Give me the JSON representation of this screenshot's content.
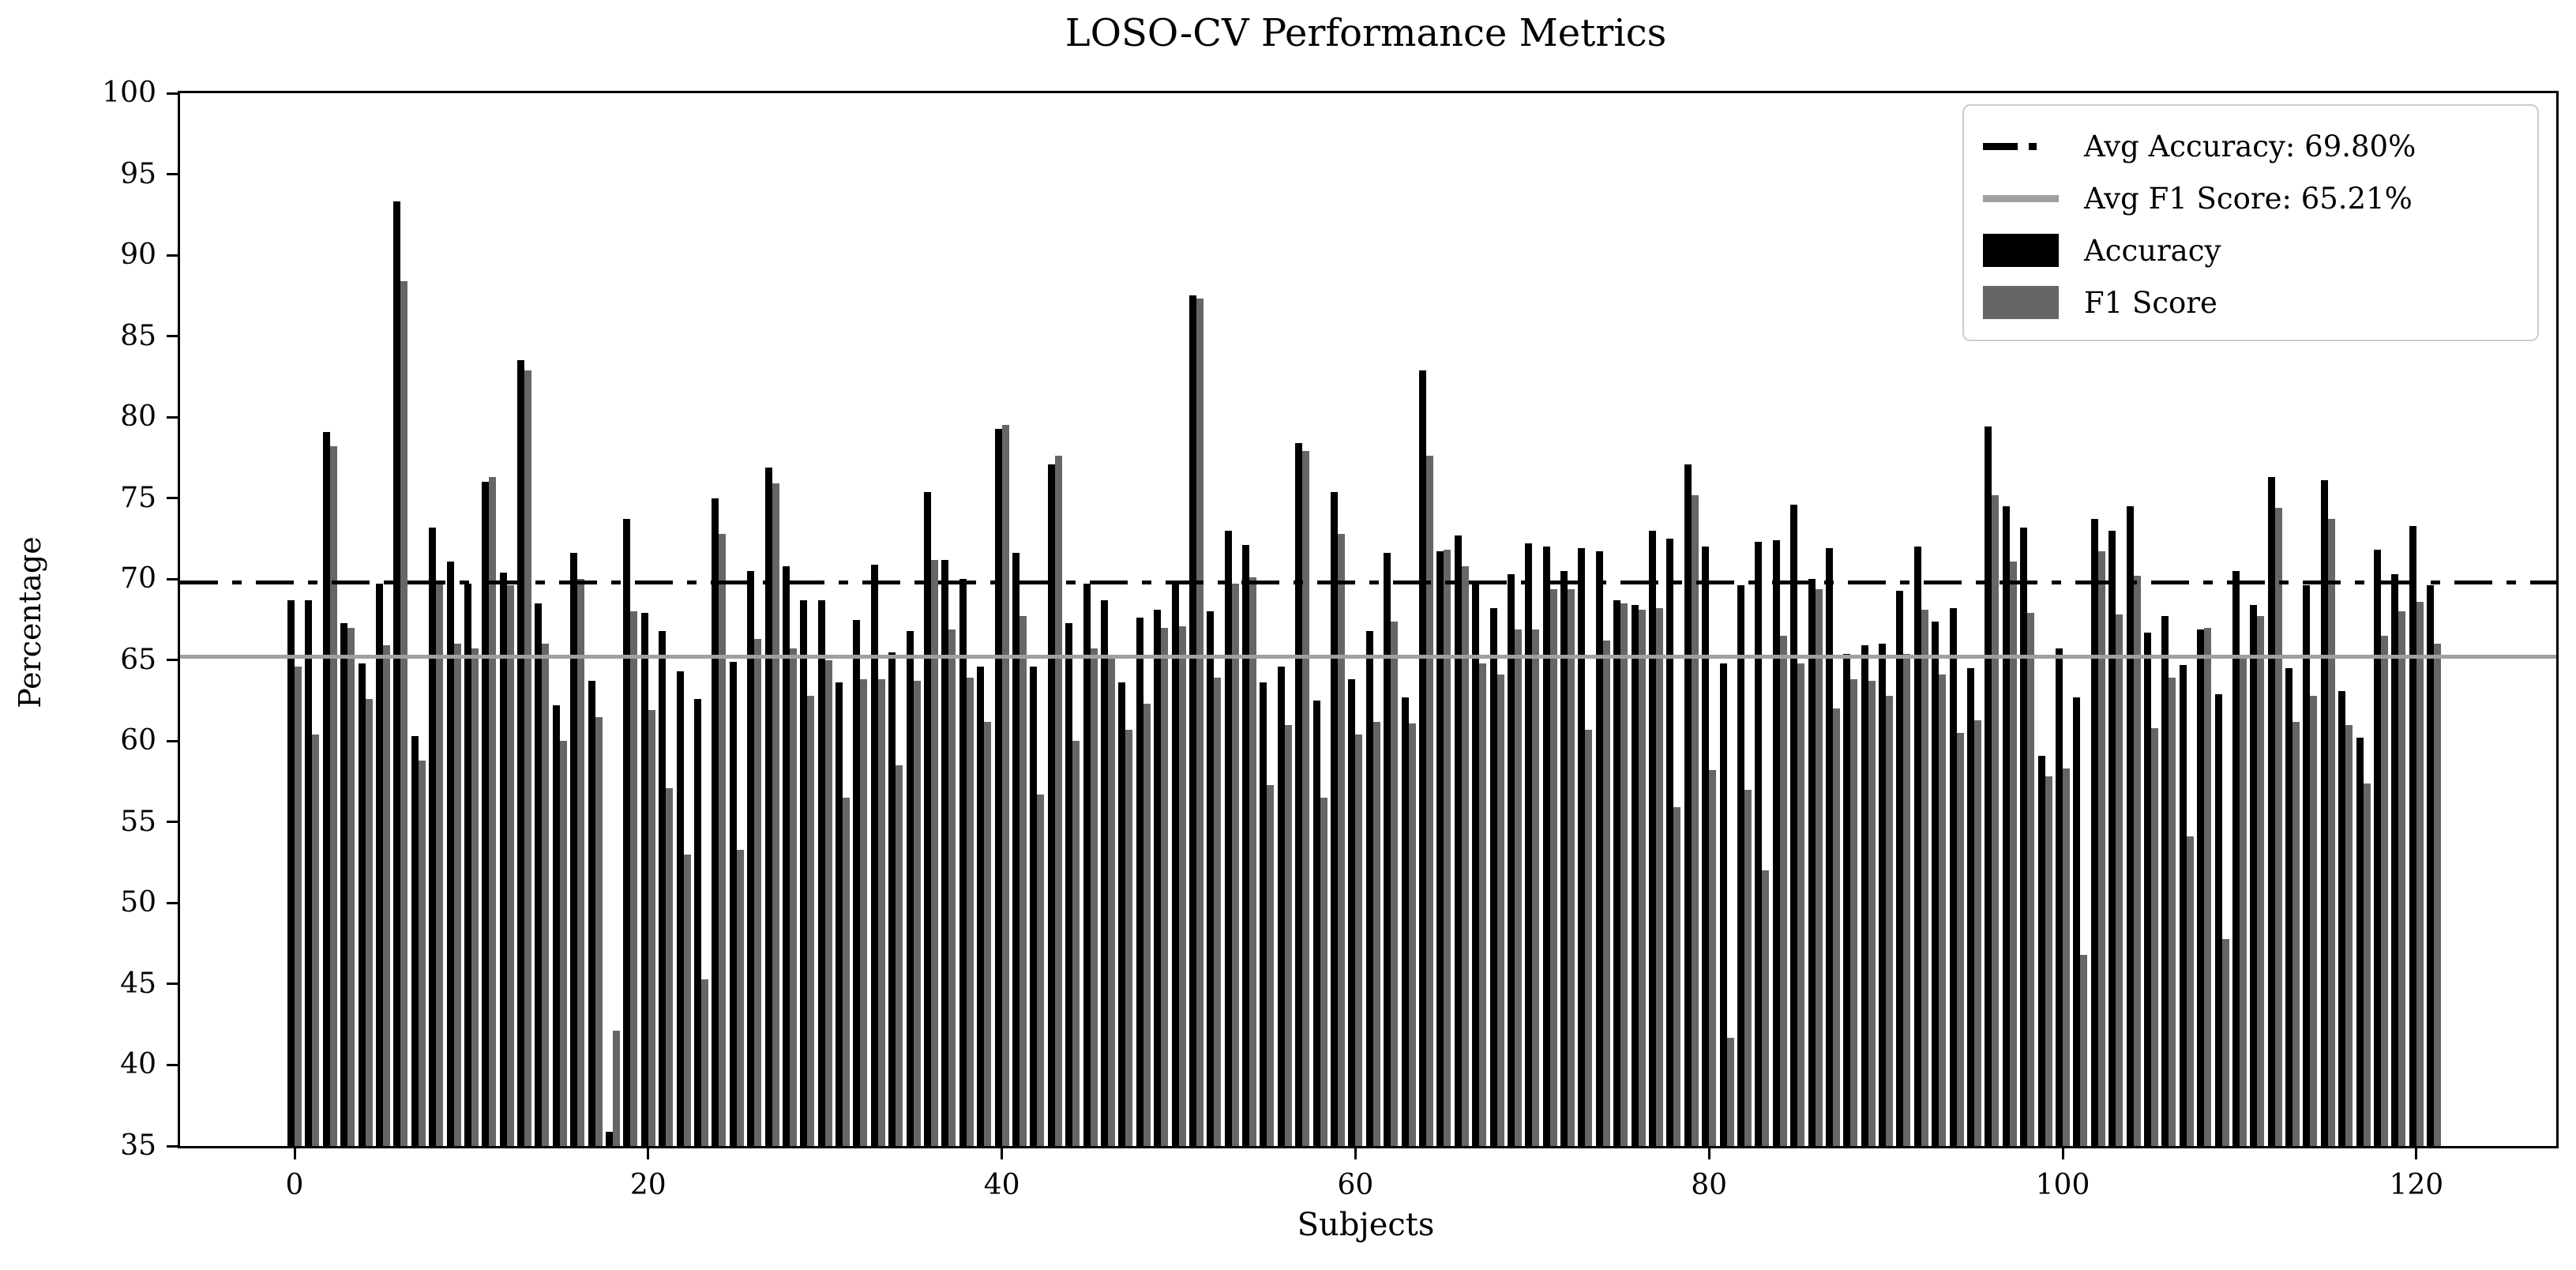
{
  "title": "LOSO-CV Performance Metrics",
  "axes": {
    "xlabel": "Subjects",
    "ylabel": "Percentage"
  },
  "legend": {
    "items": [
      {
        "label": "Avg Accuracy: 69.80%",
        "swatch": "dashdot-line",
        "color": "#000000"
      },
      {
        "label": "Avg F1 Score: 65.21%",
        "swatch": "solid-line",
        "color": "#a0a0a0"
      },
      {
        "label": "Accuracy",
        "swatch": "patch",
        "color": "#000000"
      },
      {
        "label": "F1 Score",
        "swatch": "patch",
        "color": "#666666"
      }
    ]
  },
  "chart_data": {
    "type": "bar",
    "title": "LOSO-CV Performance Metrics",
    "xlabel": "Subjects",
    "ylabel": "Percentage",
    "ylim": [
      35,
      100
    ],
    "yticks": [
      35,
      40,
      45,
      50,
      55,
      60,
      65,
      70,
      75,
      80,
      85,
      90,
      95,
      100
    ],
    "xticks": [
      0,
      20,
      40,
      60,
      80,
      100,
      120
    ],
    "grid": false,
    "legend_position": "upper right",
    "n_subjects": 122,
    "avg_lines": [
      {
        "name": "Avg Accuracy",
        "value": 69.8,
        "style": "dashdot",
        "color": "#000000"
      },
      {
        "name": "Avg F1 Score",
        "value": 65.21,
        "style": "solid",
        "color": "#a0a0a0"
      }
    ],
    "series": [
      {
        "name": "Accuracy",
        "color": "#000000",
        "values": [
          68.7,
          68.7,
          79.1,
          67.3,
          64.8,
          69.7,
          93.3,
          60.3,
          73.2,
          71.1,
          69.7,
          76.0,
          70.4,
          83.5,
          68.5,
          62.2,
          71.6,
          63.7,
          35.9,
          73.7,
          67.9,
          66.8,
          64.3,
          62.6,
          75.0,
          64.9,
          70.5,
          76.9,
          70.8,
          68.7,
          68.7,
          63.6,
          67.5,
          70.9,
          65.5,
          66.8,
          75.4,
          71.2,
          70.0,
          64.6,
          79.3,
          71.6,
          64.6,
          77.1,
          67.3,
          69.7,
          68.7,
          63.6,
          67.6,
          68.1,
          69.7,
          87.5,
          68.0,
          73.0,
          72.1,
          63.6,
          64.6,
          78.4,
          62.5,
          75.4,
          63.8,
          66.8,
          71.6,
          62.7,
          82.9,
          71.7,
          72.7,
          69.7,
          68.2,
          70.3,
          72.2,
          72.0,
          70.5,
          71.9,
          71.7,
          68.7,
          68.4,
          73.0,
          72.5,
          77.1,
          72.0,
          64.8,
          69.6,
          72.3,
          72.4,
          74.6,
          70.0,
          71.9,
          65.4,
          65.9,
          66.0,
          69.3,
          72.0,
          67.4,
          68.2,
          64.5,
          79.4,
          74.5,
          73.2,
          59.1,
          65.7,
          62.7,
          73.7,
          73.0,
          74.5,
          66.7,
          67.7,
          64.7,
          66.9,
          62.9,
          70.5,
          68.4,
          76.3,
          64.5,
          69.6,
          76.1,
          63.1,
          60.2,
          71.8,
          70.3,
          73.3,
          69.6
        ]
      },
      {
        "name": "F1 Score",
        "color": "#666666",
        "values": [
          64.6,
          60.4,
          78.2,
          67.0,
          62.6,
          65.9,
          88.4,
          58.8,
          69.7,
          66.0,
          65.7,
          76.3,
          69.6,
          82.9,
          66.0,
          60.0,
          70.0,
          61.5,
          42.1,
          68.0,
          61.9,
          57.1,
          53.0,
          45.3,
          72.8,
          53.3,
          66.3,
          75.9,
          65.7,
          62.8,
          65.0,
          56.5,
          63.8,
          63.8,
          58.5,
          63.7,
          71.2,
          66.9,
          63.9,
          61.2,
          79.5,
          67.7,
          56.7,
          77.6,
          60.0,
          65.7,
          65.2,
          60.7,
          62.3,
          67.0,
          67.1,
          87.3,
          63.9,
          69.7,
          70.1,
          57.3,
          61.0,
          77.9,
          56.5,
          72.8,
          60.4,
          61.2,
          67.4,
          61.1,
          77.6,
          71.8,
          70.8,
          64.8,
          64.1,
          66.9,
          66.9,
          69.4,
          69.4,
          60.7,
          66.2,
          68.5,
          68.1,
          68.2,
          55.9,
          75.2,
          58.2,
          41.7,
          57.0,
          52.0,
          66.5,
          64.8,
          69.4,
          62.0,
          63.8,
          63.7,
          62.8,
          65.4,
          68.1,
          64.1,
          60.5,
          61.3,
          75.2,
          71.1,
          67.9,
          57.8,
          58.3,
          46.8,
          71.7,
          67.8,
          70.2,
          60.8,
          63.9,
          54.1,
          67.0,
          47.8,
          65.3,
          67.7,
          74.4,
          61.2,
          62.8,
          73.7,
          61.0,
          57.4,
          66.5,
          68.0,
          68.6,
          66.0
        ]
      }
    ]
  }
}
